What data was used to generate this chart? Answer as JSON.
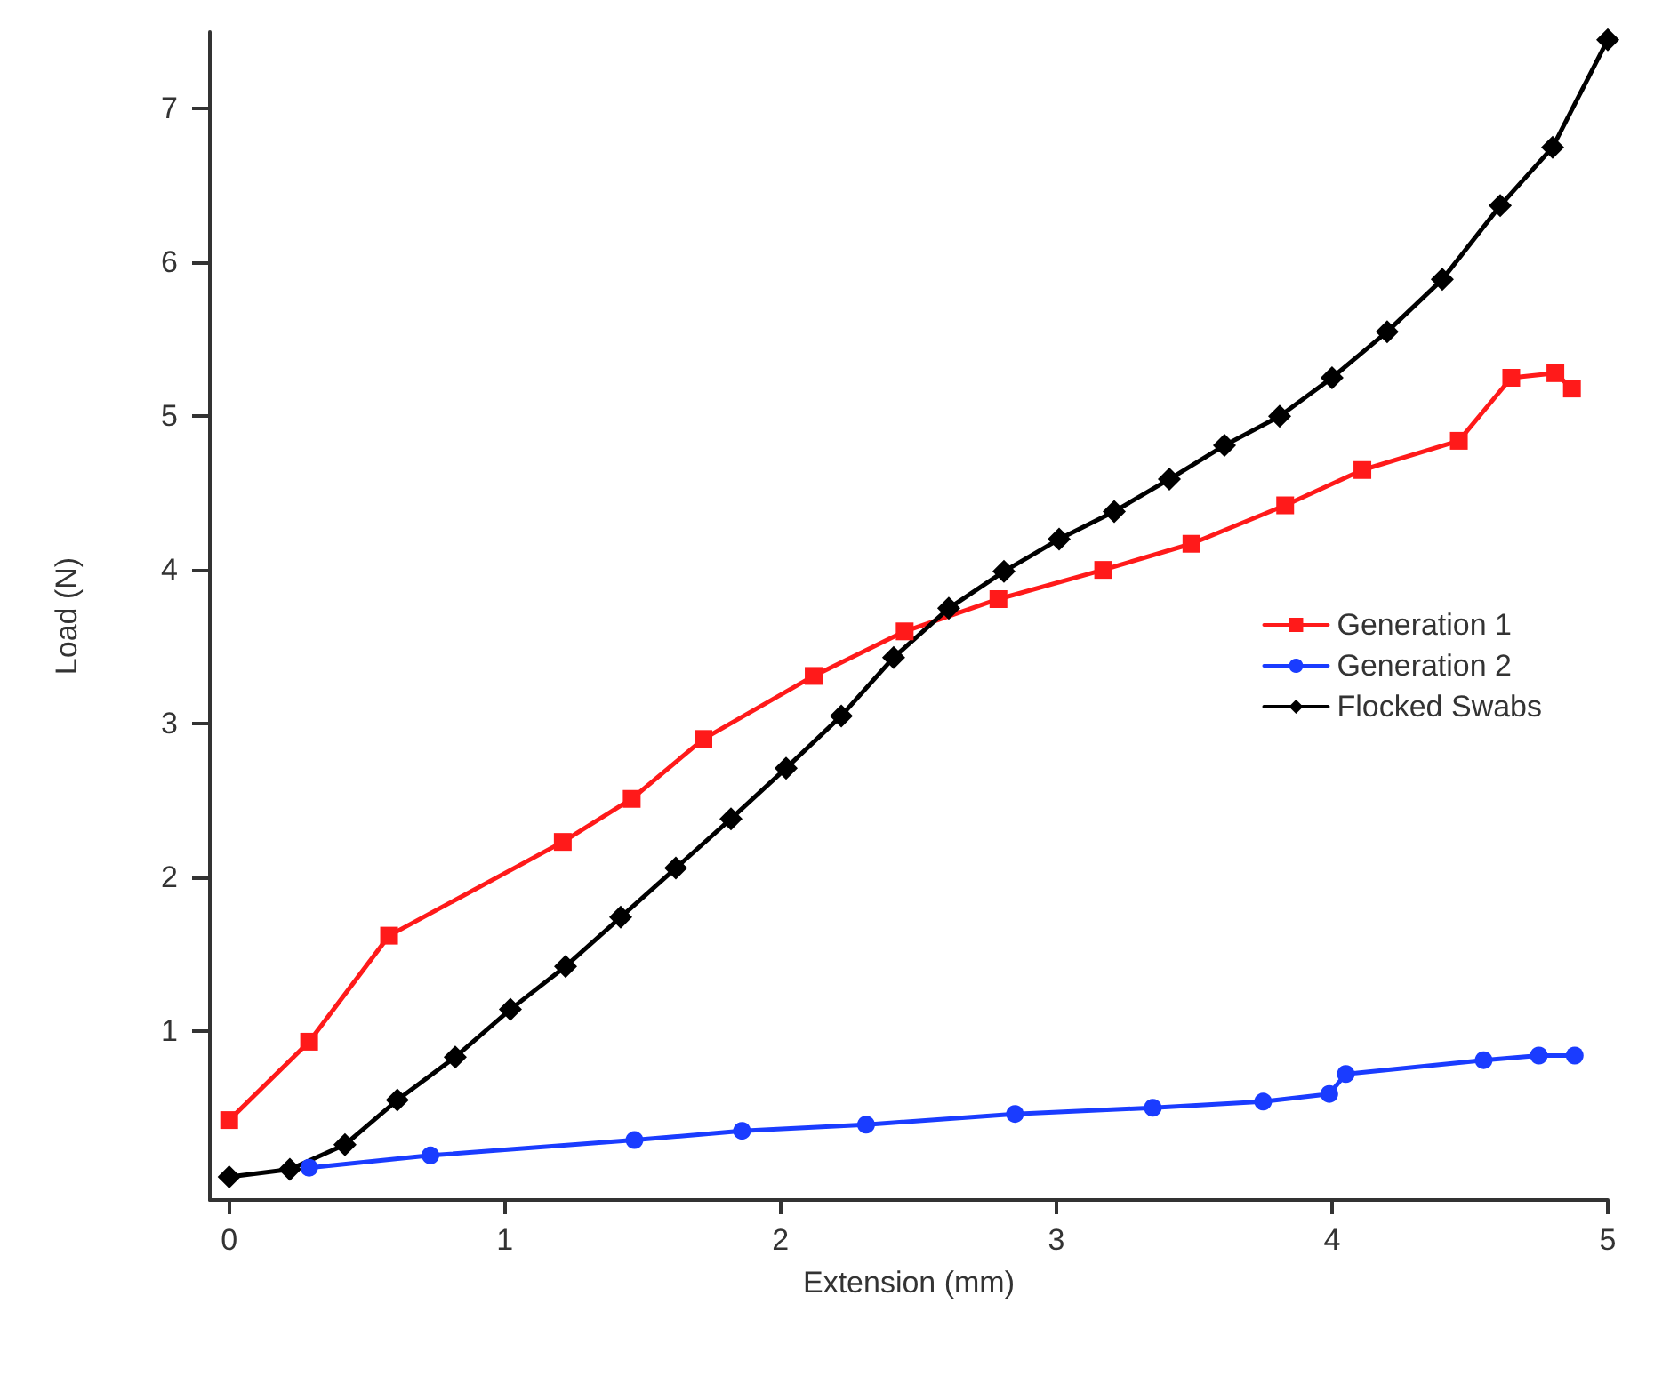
{
  "chart_data": {
    "type": "line",
    "xlabel": "Extension (mm)",
    "ylabel": "Load (N)",
    "xlim": [
      -0.07,
      5
    ],
    "ylim": [
      -0.1,
      7.5
    ],
    "xticks": [
      0,
      1,
      2,
      3,
      4,
      5
    ],
    "yticks": [
      1,
      2,
      3,
      4,
      5,
      6,
      7
    ],
    "grid": false,
    "legend": "right",
    "line_style": "solid",
    "series": [
      {
        "name": "Generation 1",
        "color": "#ff1a1a",
        "marker": "square",
        "x": [
          0,
          0.29,
          0.58,
          1.21,
          1.46,
          1.72,
          2.12,
          2.45,
          2.79,
          3.17,
          3.49,
          3.83,
          4.11,
          4.46,
          4.65,
          4.81,
          4.87
        ],
        "values": [
          0.42,
          0.93,
          1.62,
          2.23,
          2.51,
          2.9,
          3.31,
          3.6,
          3.81,
          4.0,
          4.17,
          4.42,
          4.65,
          4.84,
          5.25,
          5.28,
          5.18
        ]
      },
      {
        "name": "Generation 2",
        "color": "#1a3cff",
        "marker": "circle",
        "x": [
          0.29,
          0.73,
          1.47,
          1.86,
          2.31,
          2.85,
          3.35,
          3.75,
          3.99,
          4.05,
          4.55,
          4.75,
          4.88
        ],
        "values": [
          0.11,
          0.19,
          0.29,
          0.35,
          0.39,
          0.46,
          0.5,
          0.54,
          0.59,
          0.72,
          0.81,
          0.84,
          0.84
        ]
      },
      {
        "name": "Flocked Swabs",
        "color": "#000000",
        "marker": "diamond",
        "x": [
          0,
          0.22,
          0.42,
          0.61,
          0.82,
          1.02,
          1.22,
          1.42,
          1.62,
          1.82,
          2.02,
          2.22,
          2.41,
          2.61,
          2.81,
          3.01,
          3.21,
          3.41,
          3.61,
          3.81,
          4.0,
          4.2,
          4.4,
          4.61,
          4.8,
          5.0
        ],
        "values": [
          0.05,
          0.1,
          0.26,
          0.55,
          0.83,
          1.14,
          1.42,
          1.74,
          2.06,
          2.38,
          2.71,
          3.05,
          3.43,
          3.75,
          3.99,
          4.2,
          4.38,
          4.59,
          4.81,
          5.0,
          5.25,
          5.55,
          5.89,
          6.37,
          6.75,
          7.45
        ]
      }
    ]
  }
}
